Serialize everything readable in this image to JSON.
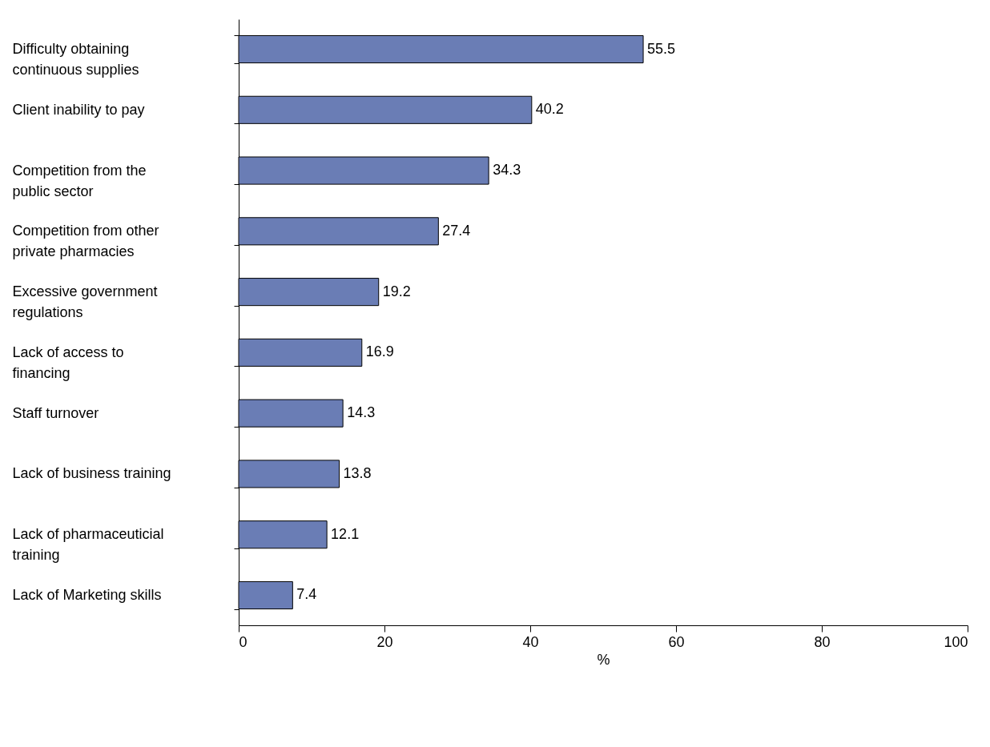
{
  "chart_data": {
    "type": "bar",
    "orientation": "horizontal",
    "xlabel": "%",
    "categories": [
      "Difficulty obtaining continuous supplies",
      "Client inability to pay",
      "Competition from the public sector",
      "Competition from other private pharmacies",
      "Excessive government regulations",
      "Lack of access to financing",
      "Staff turnover",
      "Lack of business training",
      "Lack of pharmaceuticial training",
      "Lack of Marketing skills"
    ],
    "values": [
      55.5,
      40.2,
      34.3,
      27.4,
      19.2,
      16.9,
      14.3,
      13.8,
      12.1,
      7.4
    ],
    "color": "#6a7db5",
    "xlim": [
      0,
      100
    ],
    "xticks": [
      0,
      20,
      40,
      60,
      80,
      100
    ],
    "data_labels": true
  }
}
